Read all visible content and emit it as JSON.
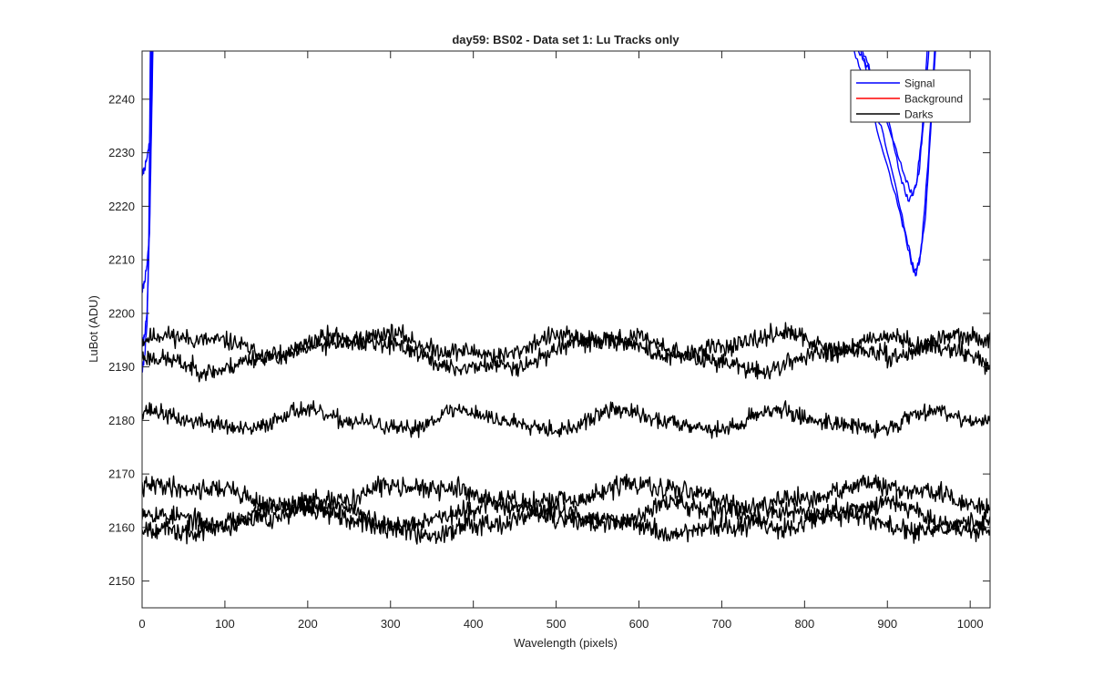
{
  "chart_data": {
    "type": "line",
    "title": "day59: BS02 - Data set 1: Lu Tracks only",
    "xlabel": "Wavelength (pixels)",
    "ylabel": "LuBot (ADU)",
    "xlim": [
      0,
      1024
    ],
    "ylim": [
      2145,
      2249
    ],
    "xticks": [
      0,
      100,
      200,
      300,
      400,
      500,
      600,
      700,
      800,
      900,
      1000
    ],
    "yticks": [
      2150,
      2160,
      2170,
      2180,
      2190,
      2200,
      2210,
      2220,
      2230,
      2240
    ],
    "grid": false,
    "legend_position": "top-right",
    "legend": [
      {
        "label": "Signal",
        "color": "#0000ff"
      },
      {
        "label": "Background",
        "color": "#ff0000"
      },
      {
        "label": "Darks",
        "color": "#000000"
      }
    ],
    "series": [
      {
        "name": "Signal",
        "color": "#0000ff",
        "points": [
          [
            0,
            2226
          ],
          [
            3,
            2227
          ],
          [
            6,
            2229
          ],
          [
            9,
            2232
          ],
          [
            11,
            2240
          ],
          [
            12,
            2249
          ]
        ]
      },
      {
        "name": "Signal",
        "color": "#0000ff",
        "points": [
          [
            0,
            2204
          ],
          [
            3,
            2206
          ],
          [
            6,
            2209
          ],
          [
            9,
            2215
          ],
          [
            11,
            2232
          ],
          [
            13,
            2249
          ]
        ]
      },
      {
        "name": "Signal",
        "color": "#0000ff",
        "points": [
          [
            0,
            2194
          ],
          [
            3,
            2196
          ],
          [
            6,
            2200
          ],
          [
            8,
            2210
          ],
          [
            10,
            2228
          ],
          [
            11,
            2249
          ]
        ]
      },
      {
        "name": "Signal",
        "color": "#0000ff",
        "points": [
          [
            0,
            2189
          ],
          [
            3,
            2192
          ],
          [
            6,
            2198
          ],
          [
            8,
            2212
          ],
          [
            10,
            2249
          ]
        ]
      },
      {
        "name": "Signal",
        "color": "#0000ff",
        "points": [
          [
            865,
            2249
          ],
          [
            880,
            2245
          ],
          [
            900,
            2237
          ],
          [
            915,
            2226
          ],
          [
            925,
            2221
          ],
          [
            935,
            2224
          ],
          [
            942,
            2234
          ],
          [
            948,
            2249
          ]
        ]
      },
      {
        "name": "Signal",
        "color": "#0000ff",
        "points": [
          [
            870,
            2249
          ],
          [
            885,
            2243
          ],
          [
            905,
            2233
          ],
          [
            920,
            2226
          ],
          [
            930,
            2222
          ],
          [
            938,
            2226
          ],
          [
            945,
            2238
          ],
          [
            950,
            2249
          ]
        ]
      },
      {
        "name": "Signal",
        "color": "#0000ff",
        "points": [
          [
            860,
            2249
          ],
          [
            875,
            2241
          ],
          [
            895,
            2230
          ],
          [
            915,
            2219
          ],
          [
            928,
            2210
          ],
          [
            934,
            2207
          ],
          [
            941,
            2212
          ],
          [
            950,
            2230
          ],
          [
            957,
            2249
          ]
        ]
      },
      {
        "name": "Signal",
        "color": "#0000ff",
        "points": [
          [
            868,
            2249
          ],
          [
            885,
            2239
          ],
          [
            905,
            2227
          ],
          [
            922,
            2215
          ],
          [
            932,
            2208
          ],
          [
            938,
            2209
          ],
          [
            946,
            2218
          ],
          [
            953,
            2236
          ],
          [
            958,
            2249
          ]
        ]
      },
      {
        "name": "Darks",
        "color": "#000000",
        "base": 2194,
        "amplitude": 1.8,
        "period": 240,
        "phase": 0.3,
        "noise": 1.2,
        "seed": 11
      },
      {
        "name": "Darks",
        "color": "#000000",
        "base": 2192.5,
        "amplitude": 2.8,
        "period": 330,
        "phase": 3.2,
        "noise": 1.2,
        "seed": 23
      },
      {
        "name": "Darks",
        "color": "#000000",
        "base": 2180,
        "amplitude": 1.6,
        "period": 190,
        "phase": 1.1,
        "noise": 1.1,
        "seed": 37
      },
      {
        "name": "Darks",
        "color": "#000000",
        "base": 2166,
        "amplitude": 1.8,
        "period": 280,
        "phase": 0.5,
        "noise": 1.3,
        "seed": 41
      },
      {
        "name": "Darks",
        "color": "#000000",
        "base": 2162.5,
        "amplitude": 2.0,
        "period": 230,
        "phase": 2.4,
        "noise": 1.3,
        "seed": 53
      },
      {
        "name": "Darks",
        "color": "#000000",
        "base": 2161,
        "amplitude": 1.8,
        "period": 310,
        "phase": 4.0,
        "noise": 1.3,
        "seed": 67
      }
    ]
  }
}
